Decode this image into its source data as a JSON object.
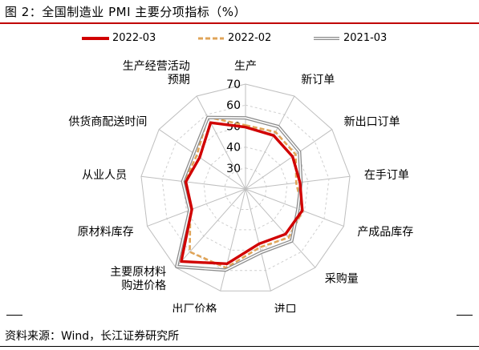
{
  "title": "图 2：全国制造业 PMI 主要分项指标（%）",
  "source": "资料来源：Wind，长江证券研究所",
  "chart_data": {
    "type": "radar",
    "title": "",
    "rlim": [
      20,
      70
    ],
    "radial_ticks": [
      30,
      40,
      50,
      60,
      70
    ],
    "grid": true,
    "legend_position": "top",
    "axes": [
      [
        "生产"
      ],
      [
        "新订单"
      ],
      [
        "新出口订单"
      ],
      [
        "在手订单"
      ],
      [
        "产成品库存"
      ],
      [
        "采购量"
      ],
      [
        "进口"
      ],
      [
        "出厂价格"
      ],
      [
        "主要原材料",
        "购进价格"
      ],
      [
        "原材料库存"
      ],
      [
        "从业人员"
      ],
      [
        "供货商配送时间"
      ],
      [
        "生产经营活动",
        "预期"
      ]
    ],
    "series": [
      {
        "name": "2022-03",
        "color": "#d10000",
        "style": "solid",
        "values": [
          49.5,
          48.8,
          47.2,
          46.1,
          48.9,
          48.7,
          46.9,
          56.7,
          66.1,
          47.3,
          48.6,
          46.5,
          55.7
        ]
      },
      {
        "name": "2022-02",
        "color": "#e0a458",
        "style": "dashed",
        "values": [
          50.4,
          50.7,
          49.0,
          44.3,
          49.1,
          50.9,
          48.6,
          58.7,
          60.0,
          48.1,
          49.2,
          48.2,
          58.7
        ]
      },
      {
        "name": "2021-03",
        "color": "#8c8c8c",
        "style": "double",
        "values": [
          53.9,
          53.6,
          51.2,
          46.6,
          46.7,
          53.1,
          51.1,
          59.8,
          69.4,
          48.4,
          50.1,
          50.0,
          58.5
        ]
      }
    ]
  }
}
